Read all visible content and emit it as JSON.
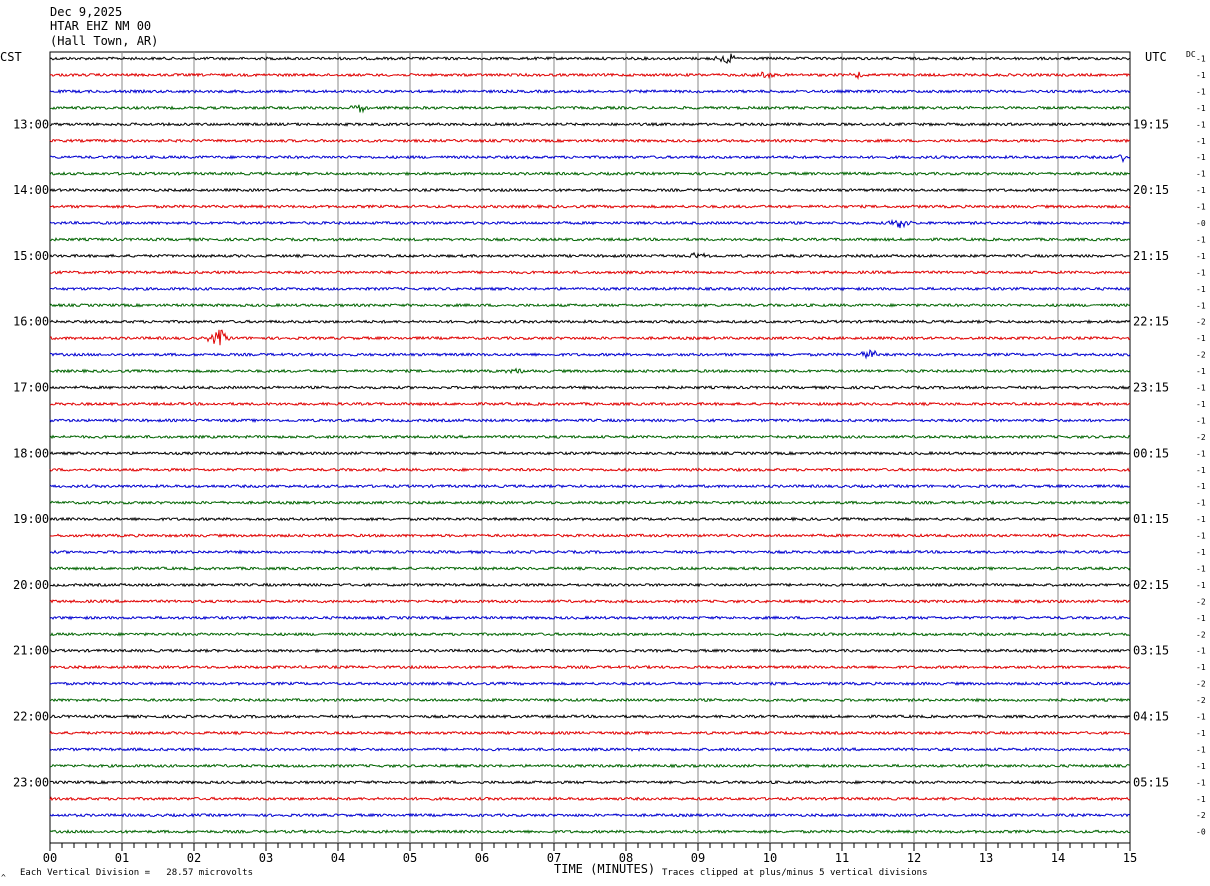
{
  "header": {
    "date": "Dec 9,2025",
    "station": "HTAR EHZ NM 00",
    "location": "(Hall Town, AR)"
  },
  "left_timezone": "CST",
  "right_timezone": "UTC",
  "dc_label": "DC",
  "footer": {
    "scale_note": "Each Vertical Division =   28.57 microvolts",
    "x_title": "TIME (MINUTES)",
    "clip_note": "Traces clipped at plus/minus 5 vertical divisions",
    "corner_mark": "^"
  },
  "chart_data": {
    "type": "line",
    "trace_colors": [
      "#000000",
      "#e00000",
      "#0000d0",
      "#006400"
    ],
    "x_ticks": [
      "00",
      "01",
      "02",
      "03",
      "04",
      "05",
      "06",
      "07",
      "08",
      "09",
      "10",
      "11",
      "12",
      "13",
      "14",
      "15"
    ],
    "xlim": [
      0,
      15
    ],
    "row_count": 48,
    "left_hour_labels": [
      {
        "row": 4,
        "label": "13:00"
      },
      {
        "row": 8,
        "label": "14:00"
      },
      {
        "row": 12,
        "label": "15:00"
      },
      {
        "row": 16,
        "label": "16:00"
      },
      {
        "row": 20,
        "label": "17:00"
      },
      {
        "row": 24,
        "label": "18:00"
      },
      {
        "row": 28,
        "label": "19:00"
      },
      {
        "row": 32,
        "label": "20:00"
      },
      {
        "row": 36,
        "label": "21:00"
      },
      {
        "row": 40,
        "label": "22:00"
      },
      {
        "row": 44,
        "label": "23:00"
      }
    ],
    "right_hour_labels": [
      {
        "row": 4,
        "label": "19:15"
      },
      {
        "row": 8,
        "label": "20:15"
      },
      {
        "row": 12,
        "label": "21:15"
      },
      {
        "row": 16,
        "label": "22:15"
      },
      {
        "row": 20,
        "label": "23:15"
      },
      {
        "row": 24,
        "label": "00:15"
      },
      {
        "row": 28,
        "label": "01:15"
      },
      {
        "row": 32,
        "label": "02:15"
      },
      {
        "row": 36,
        "label": "03:15"
      },
      {
        "row": 40,
        "label": "04:15"
      },
      {
        "row": 44,
        "label": "05:15"
      }
    ],
    "dc_offsets": [
      "-1",
      "-1",
      "-1",
      "-1",
      "-1",
      "-1",
      "-1",
      "-1",
      "-1",
      "-1",
      "-0",
      "-1",
      "-1",
      "-1",
      "-1",
      "-1",
      "-2",
      "-1",
      "-2",
      "-1",
      "-1",
      "-1",
      "-1",
      "-2",
      "-1",
      "-1",
      "-1",
      "-1",
      "-1",
      "-1",
      "-1",
      "-1",
      "-1",
      "-2",
      "-1",
      "-2",
      "-1",
      "-1",
      "-2",
      "-2",
      "-1",
      "-1",
      "-1",
      "-1",
      "-1",
      "-1",
      "-2",
      "-0"
    ],
    "events": [
      {
        "row": 0,
        "minute": 9.4,
        "amp": 2.5
      },
      {
        "row": 1,
        "minute": 9.9,
        "amp": 2.0
      },
      {
        "row": 1,
        "minute": 11.2,
        "amp": 1.5
      },
      {
        "row": 3,
        "minute": 4.3,
        "amp": 2.5
      },
      {
        "row": 6,
        "minute": 14.9,
        "amp": 2.0
      },
      {
        "row": 10,
        "minute": 11.8,
        "amp": 2.5
      },
      {
        "row": 12,
        "minute": 9.0,
        "amp": 1.5
      },
      {
        "row": 17,
        "minute": 2.35,
        "amp": 4.5
      },
      {
        "row": 18,
        "minute": 11.4,
        "amp": 2.5
      },
      {
        "row": 19,
        "minute": 6.5,
        "amp": 1.5
      }
    ]
  }
}
